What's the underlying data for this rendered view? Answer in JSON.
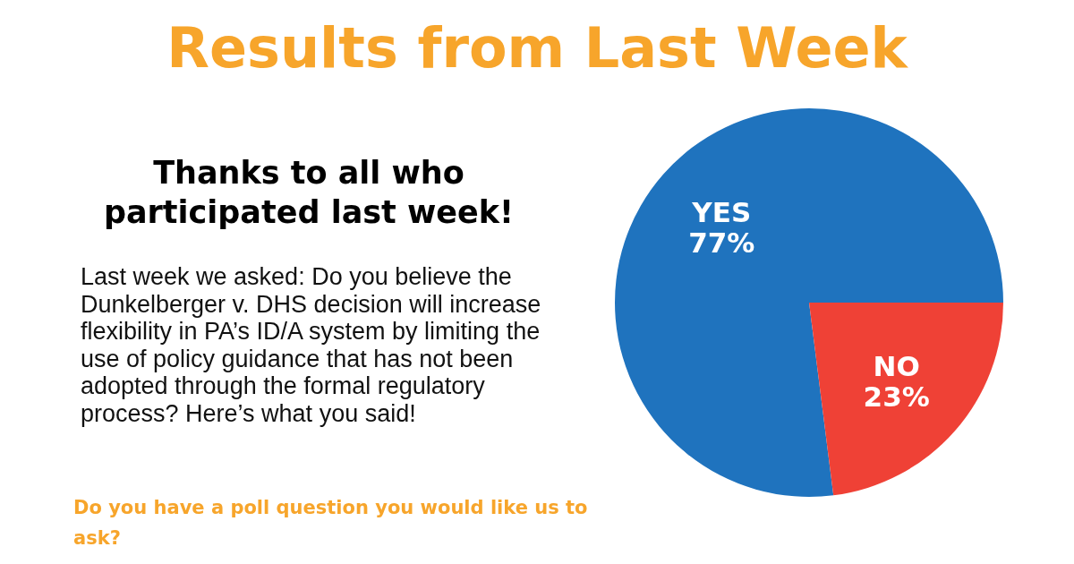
{
  "chart_data": {
    "type": "pie",
    "title": "Results from Last Week",
    "subtitle": "Thanks to all who participated last week!",
    "annotations": [
      "Last week we asked: Do you believe the Dunkelberger v. DHS decision will increase flexibility in PA’s ID/A system by limiting the use of policy guidance that has not been adopted through the formal regulatory process? Here’s what you said!",
      "Do you have a poll question you would like us to ask?"
    ],
    "categories": [
      "YES",
      "NO"
    ],
    "values": [
      77,
      23
    ],
    "colors": [
      "#1f73be",
      "#ef4136"
    ],
    "value_labels": [
      "77%",
      "23%"
    ]
  }
}
